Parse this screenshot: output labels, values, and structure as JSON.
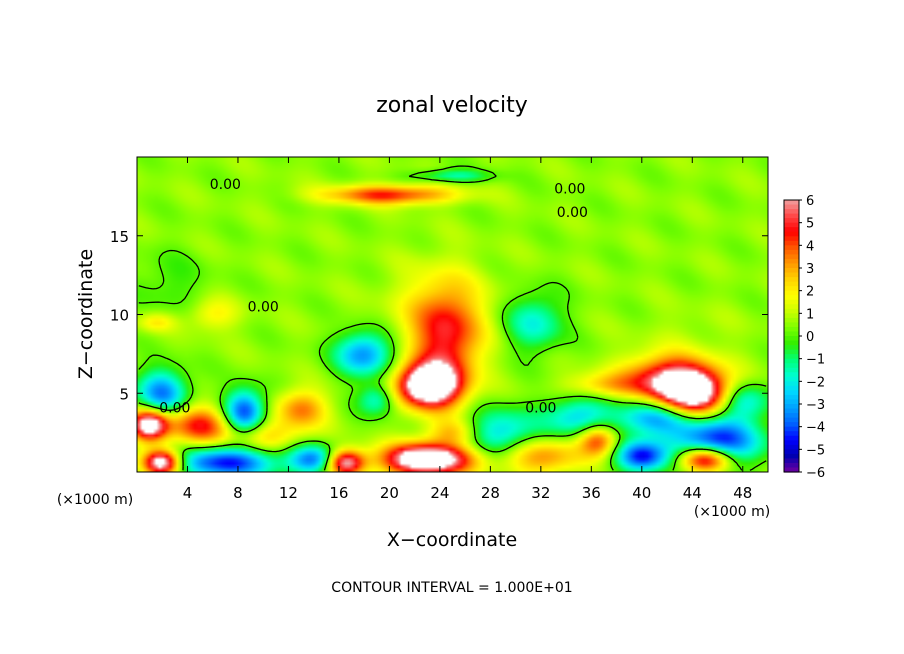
{
  "chart_data": {
    "type": "heatmap",
    "title": "zonal velocity",
    "xlabel": "X−coordinate",
    "ylabel": "Z−coordinate",
    "x_unit_left": "(×1000 m)",
    "x_unit_right": "(×1000 m)",
    "footer": "CONTOUR INTERVAL = 1.000E+01",
    "xlim": [
      0,
      50
    ],
    "ylim": [
      0,
      20
    ],
    "x_ticks": [
      4,
      8,
      12,
      16,
      20,
      24,
      28,
      32,
      36,
      40,
      44,
      48
    ],
    "x_tick_labels": [
      "4",
      "8",
      "12",
      "16",
      "20",
      "24",
      "28",
      "32",
      "36",
      "40",
      "44",
      "48"
    ],
    "y_ticks": [
      5,
      10,
      15
    ],
    "y_tick_labels": [
      "5",
      "10",
      "15"
    ],
    "contour_labels": [
      {
        "text": "0.00",
        "x": 7,
        "y": 18.3
      },
      {
        "text": "0.00",
        "x": 34.3,
        "y": 18
      },
      {
        "text": "0.00",
        "x": 34.5,
        "y": 16.5
      },
      {
        "text": "0.00",
        "x": 10,
        "y": 10.5
      },
      {
        "text": "0.00",
        "x": 3,
        "y": 4.1
      },
      {
        "text": "0.00",
        "x": 32,
        "y": 4.1
      }
    ],
    "colorbar": {
      "min": -6,
      "max": 6,
      "tick_labels": [
        "6",
        "5",
        "4",
        "3",
        "2",
        "1",
        "0",
        "−1",
        "−2",
        "−3",
        "−4",
        "−5",
        "−6"
      ],
      "colors": [
        "#f0a0a0",
        "#ff4848",
        "#ff0000",
        "#ff5800",
        "#ff9a00",
        "#ffd400",
        "#ffff00",
        "#c8ff00",
        "#7cff00",
        "#30ee00",
        "#00ff78",
        "#00ffd0",
        "#00d8ff",
        "#00a0ff",
        "#0060ff",
        "#0000ff",
        "#0000b0",
        "#7000a0"
      ]
    },
    "background_value": 0.5,
    "features": [
      {
        "x": 23,
        "y": 5.5,
        "rx": 2.4,
        "ry": 1.3,
        "value": 8
      },
      {
        "x": 24.5,
        "y": 8,
        "rx": 2.5,
        "ry": 3.5,
        "value": 3.5
      },
      {
        "x": 24,
        "y": 10,
        "rx": 4,
        "ry": 3,
        "value": 1.5
      },
      {
        "x": 23,
        "y": 0.8,
        "rx": 3.5,
        "ry": 1.0,
        "value": 8
      },
      {
        "x": 20,
        "y": 17.6,
        "rx": 5,
        "ry": 0.6,
        "value": 4
      },
      {
        "x": 31.5,
        "y": 9.5,
        "rx": 2.2,
        "ry": 1.8,
        "value": -2.5
      },
      {
        "x": 18,
        "y": 7.5,
        "rx": 2.2,
        "ry": 1.4,
        "value": -4
      },
      {
        "x": 19,
        "y": 4.6,
        "rx": 1.5,
        "ry": 1.0,
        "value": -2.5
      },
      {
        "x": 5,
        "y": 3,
        "rx": 2.5,
        "ry": 1.2,
        "value": 4
      },
      {
        "x": 2,
        "y": 5,
        "rx": 2,
        "ry": 1.5,
        "value": -4
      },
      {
        "x": 8.5,
        "y": 3.8,
        "rx": 1.6,
        "ry": 1.4,
        "value": -5
      },
      {
        "x": 13,
        "y": 4,
        "rx": 2,
        "ry": 1.2,
        "value": 3
      },
      {
        "x": 10,
        "y": 2.3,
        "rx": 3,
        "ry": 1,
        "value": 2
      },
      {
        "x": 1,
        "y": 3,
        "rx": 1.5,
        "ry": 1,
        "value": 7
      },
      {
        "x": 7,
        "y": 0.6,
        "rx": 4,
        "ry": 1,
        "value": -5
      },
      {
        "x": 2,
        "y": 0.6,
        "rx": 1.5,
        "ry": 0.8,
        "value": 7
      },
      {
        "x": 14,
        "y": 0.8,
        "rx": 2,
        "ry": 0.9,
        "value": -4
      },
      {
        "x": 16.5,
        "y": 0.6,
        "rx": 1.5,
        "ry": 0.8,
        "value": 6
      },
      {
        "x": 29,
        "y": 2.5,
        "rx": 3,
        "ry": 1.5,
        "value": -3
      },
      {
        "x": 32,
        "y": 1,
        "rx": 3,
        "ry": 1.2,
        "value": 3
      },
      {
        "x": 35,
        "y": 3.5,
        "rx": 2.5,
        "ry": 1.3,
        "value": -3
      },
      {
        "x": 36.5,
        "y": 2,
        "rx": 1.5,
        "ry": 1,
        "value": 4
      },
      {
        "x": 37,
        "y": 5.5,
        "rx": 3,
        "ry": 0.8,
        "value": 2
      },
      {
        "x": 42,
        "y": 6,
        "rx": 3.5,
        "ry": 1.5,
        "value": 4
      },
      {
        "x": 44,
        "y": 5,
        "rx": 3,
        "ry": 1.5,
        "value": 7
      },
      {
        "x": 41,
        "y": 3.5,
        "rx": 3,
        "ry": 1.2,
        "value": -4
      },
      {
        "x": 46,
        "y": 2,
        "rx": 3.5,
        "ry": 1.5,
        "value": -5
      },
      {
        "x": 48,
        "y": 4.5,
        "rx": 2,
        "ry": 1.2,
        "value": -3
      },
      {
        "x": 40,
        "y": 1,
        "rx": 2,
        "ry": 1,
        "value": -5
      },
      {
        "x": 45,
        "y": 0.8,
        "rx": 2,
        "ry": 0.8,
        "value": 6
      },
      {
        "x": 25,
        "y": 2.5,
        "rx": 2,
        "ry": 0.8,
        "value": 2
      },
      {
        "x": 2.5,
        "y": 12,
        "rx": 3,
        "ry": 2,
        "value": -0.8
      },
      {
        "x": 1.5,
        "y": 9.5,
        "rx": 1.5,
        "ry": 0.6,
        "value": 1.5
      },
      {
        "x": 12,
        "y": 13,
        "rx": 5,
        "ry": 3,
        "value": 0
      },
      {
        "x": 44,
        "y": 9,
        "rx": 4,
        "ry": 1.5,
        "value": 0.3
      },
      {
        "x": 25,
        "y": 18.8,
        "rx": 3,
        "ry": 0.4,
        "value": -2
      },
      {
        "x": 6,
        "y": 10,
        "rx": 2,
        "ry": 1,
        "value": 1.5
      }
    ]
  }
}
